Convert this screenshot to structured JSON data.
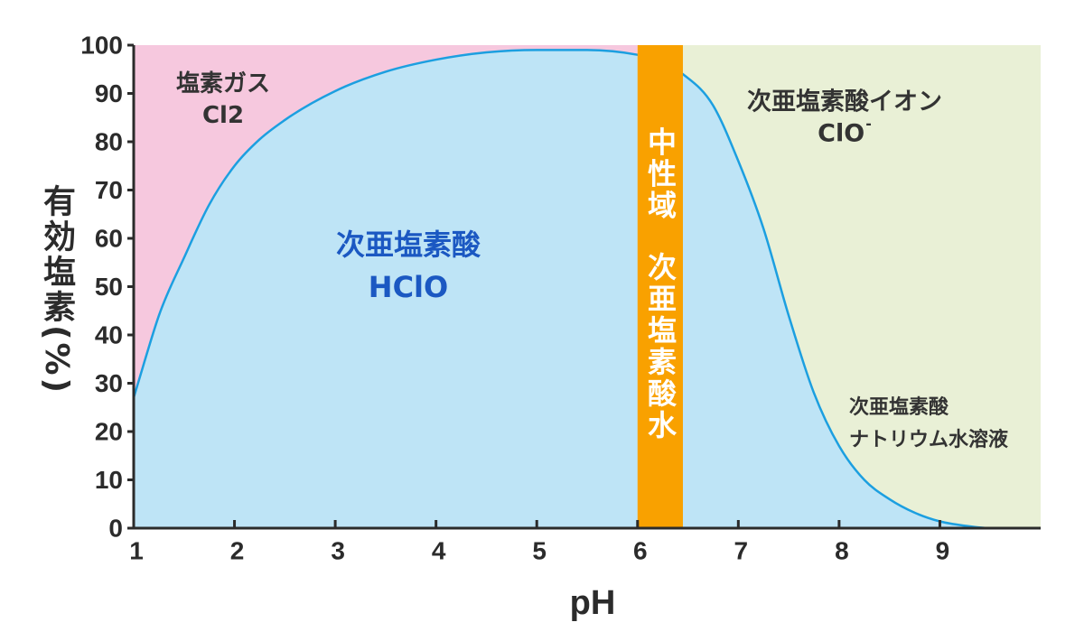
{
  "chart_data": {
    "type": "area",
    "xlabel": "pH",
    "ylabel": "有効塩素(%)",
    "xlim": [
      1,
      10
    ],
    "ylim": [
      0,
      100
    ],
    "xticks": [
      1,
      2,
      3,
      4,
      5,
      6,
      7,
      8,
      9
    ],
    "yticks": [
      0,
      10,
      20,
      30,
      40,
      50,
      60,
      70,
      80,
      90,
      100
    ],
    "grid": false,
    "series": [
      {
        "x": [
          1,
          1.1,
          1.25,
          1.5,
          1.75,
          2,
          2.25,
          2.5,
          3,
          3.5,
          4,
          4.5,
          5,
          5.5,
          6,
          6.45,
          6.75,
          7,
          7.25,
          7.5,
          7.75,
          8,
          8.25,
          8.5,
          8.75,
          9,
          9.25,
          9.5,
          10
        ],
        "y": [
          27,
          34,
          44,
          56,
          67,
          75,
          80.5,
          84.5,
          90.5,
          94.5,
          97,
          98.5,
          99,
          99,
          98,
          94,
          87.5,
          76,
          62,
          44,
          28,
          17,
          10,
          6,
          3.2,
          1.4,
          0.5,
          0,
          0
        ],
        "line_color": "#1c9fe0",
        "fill_color": "#bee4f6"
      }
    ],
    "regions": [
      {
        "from": 1,
        "to": 6,
        "color": "#f6c8de"
      },
      {
        "from": 6.45,
        "to": 10,
        "color": "#e9f0d6"
      }
    ],
    "highlight_band": {
      "from": 6,
      "to": 6.45,
      "color": "#f9a100"
    },
    "annotations": {
      "chlorine_gas": "塩素ガス",
      "chlorine_gas_formula": "Cl2",
      "hypochlorous_acid": "次亜塩素酸",
      "hypochlorous_acid_formula": "HClO",
      "neutral_zone": "中性域",
      "hypochlorous_water": "次亜塩素酸水",
      "hypochlorite_ion": "次亜塩素酸イオン",
      "hypochlorite_ion_formula": "ClO",
      "hypochlorite_ion_charge": "-",
      "sodium_hypochlorite_line1": "次亜塩素酸",
      "sodium_hypochlorite_line2": "ナトリウム水溶液"
    }
  },
  "colors": {
    "axis": "#2b2b2b",
    "text_dark": "#333333",
    "text_blue": "#1b58c2",
    "text_on_band": "#ffffff"
  }
}
